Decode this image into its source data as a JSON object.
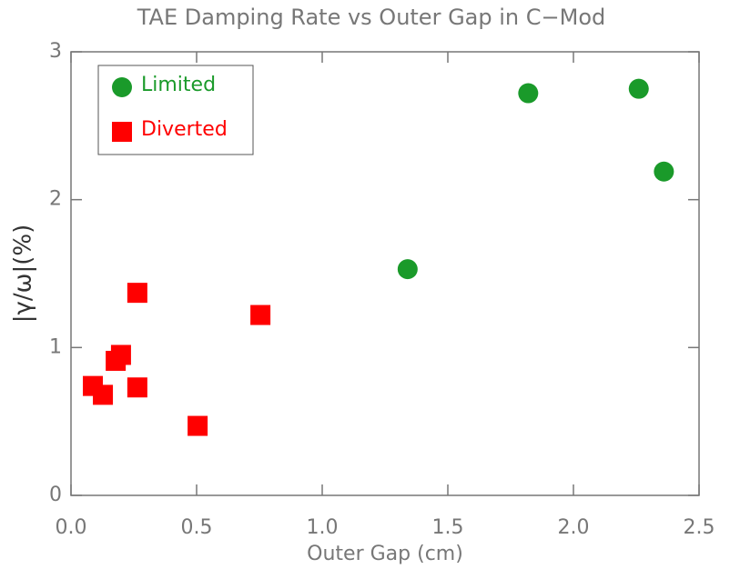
{
  "chart_data": {
    "type": "scatter",
    "title": "TAE Damping Rate vs Outer Gap in C−Mod",
    "x_label": "Outer Gap (cm)",
    "y_label": "|γ/ω|(%)",
    "xlim": [
      0,
      2.5
    ],
    "ylim": [
      0,
      3
    ],
    "xticks": [
      {
        "value": 0,
        "label": "0.0"
      },
      0.5,
      {
        "value": 1,
        "label": "1.0"
      },
      1.5,
      {
        "value": 2,
        "label": "2.0"
      },
      2.5
    ],
    "yticks": [
      0,
      1,
      2,
      3
    ],
    "legend": "upper left",
    "series": [
      {
        "name": "Limited",
        "color": "#1a9a2a",
        "marker": "circle",
        "x": [
          1.34,
          1.82,
          2.26,
          2.36
        ],
        "values": [
          1.53,
          2.72,
          2.75,
          2.19
        ]
      },
      {
        "name": "Diverted",
        "color": "#ff0000",
        "marker": "square",
        "x": [
          0.087,
          0.127,
          0.178,
          0.199,
          0.264,
          0.264,
          0.504,
          0.754
        ],
        "values": [
          0.74,
          0.68,
          0.91,
          0.95,
          1.37,
          0.73,
          0.47,
          1.22
        ]
      }
    ]
  }
}
